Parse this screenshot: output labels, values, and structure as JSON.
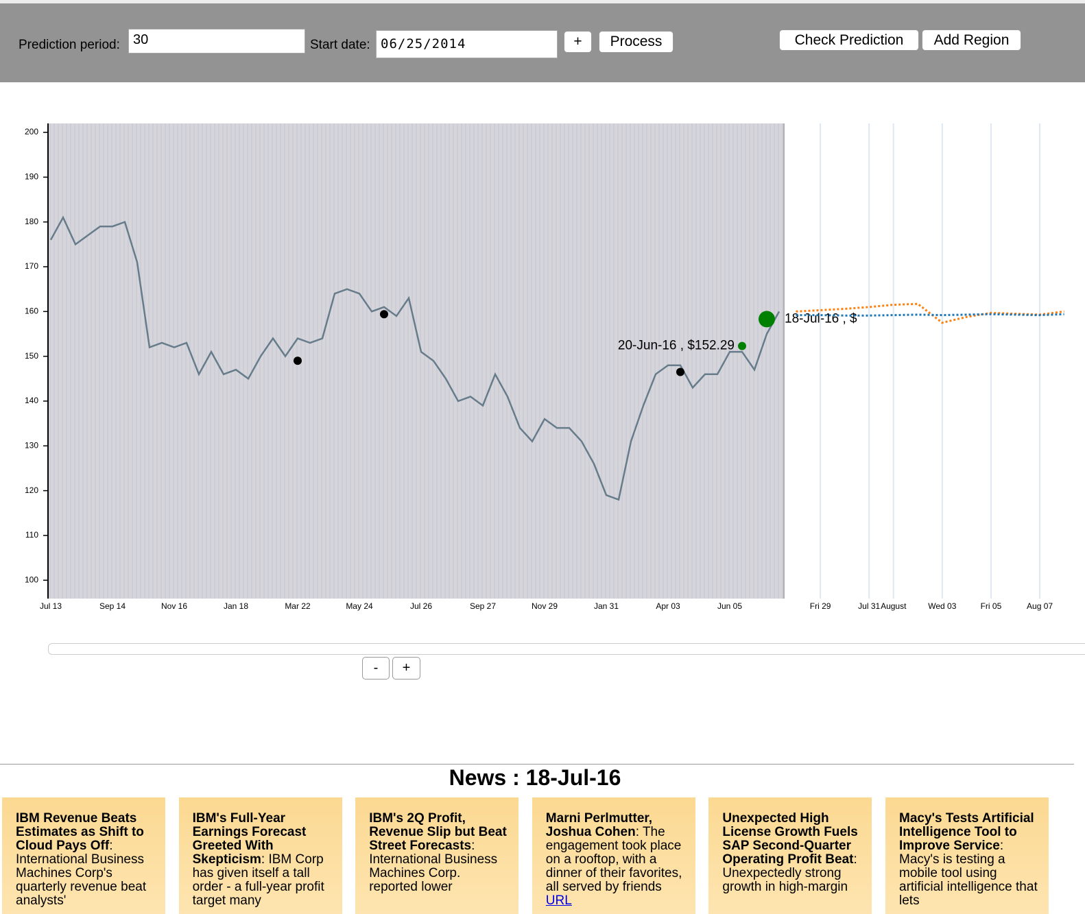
{
  "toolbar": {
    "period_label": "Prediction period:",
    "period_value": "30",
    "start_label": "Start date:",
    "start_value": "06/25/2014",
    "buttons": [
      "+",
      "Process",
      "Check Prediction",
      "Add Region"
    ]
  },
  "chart_data": [
    {
      "type": "line",
      "plot_background": "#d6d6da",
      "categories": [
        "Jul 13",
        null,
        null,
        null,
        null,
        "Sep 14",
        null,
        null,
        null,
        null,
        "Nov 16",
        null,
        null,
        null,
        null,
        "Jan 18",
        null,
        null,
        null,
        null,
        "Mar 22",
        null,
        null,
        null,
        null,
        "May 24",
        null,
        null,
        null,
        null,
        "Jul 26",
        null,
        null,
        null,
        null,
        "Sep 27",
        null,
        null,
        null,
        null,
        "Nov 29",
        null,
        null,
        null,
        null,
        "Jan 31",
        null,
        null,
        null,
        null,
        "Apr 03",
        null,
        null,
        null,
        null,
        "Jun 05",
        null,
        null,
        null,
        null
      ],
      "series": [
        {
          "color": "#667c8a",
          "marker": "none",
          "values": [
            176,
            181,
            175,
            177,
            179,
            179,
            180,
            171,
            152,
            153,
            152,
            153,
            146,
            151,
            146,
            147,
            145,
            150,
            154,
            150,
            154,
            153,
            154,
            164,
            165,
            164,
            160,
            161,
            159,
            163,
            151,
            149,
            145,
            140,
            141,
            139,
            146,
            141,
            134,
            131,
            136,
            134,
            134,
            131,
            126,
            119,
            118,
            131,
            139,
            146,
            148,
            148,
            143,
            146,
            146,
            151,
            151,
            147,
            155,
            160
          ]
        },
        {
          "color": "#000000",
          "marker": "dot",
          "values": [
            null,
            null,
            null,
            null,
            null,
            null,
            null,
            null,
            null,
            null,
            null,
            null,
            null,
            null,
            null,
            null,
            null,
            null,
            null,
            null,
            149,
            null,
            null,
            null,
            null,
            null,
            null,
            159.4,
            null,
            null,
            null,
            null,
            null,
            null,
            null,
            null,
            null,
            null,
            null,
            null,
            null,
            null,
            null,
            null,
            null,
            null,
            null,
            null,
            null,
            null,
            null,
            146.5,
            null,
            null,
            null,
            null,
            null,
            null,
            null,
            null
          ]
        },
        {
          "color": "#008000",
          "marker": "dot",
          "values": [
            null,
            null,
            null,
            null,
            null,
            null,
            null,
            null,
            null,
            null,
            null,
            null,
            null,
            null,
            null,
            null,
            null,
            null,
            null,
            null,
            null,
            null,
            null,
            null,
            null,
            null,
            null,
            null,
            null,
            null,
            null,
            null,
            null,
            null,
            null,
            null,
            null,
            null,
            null,
            null,
            null,
            null,
            null,
            null,
            null,
            null,
            null,
            null,
            null,
            null,
            null,
            null,
            null,
            null,
            null,
            null,
            152.29,
            null,
            null,
            null
          ]
        },
        {
          "color": "#008000",
          "marker": "large-dot",
          "values": [
            null,
            null,
            null,
            null,
            null,
            null,
            null,
            null,
            null,
            null,
            null,
            null,
            null,
            null,
            null,
            null,
            null,
            null,
            null,
            null,
            null,
            null,
            null,
            null,
            null,
            null,
            null,
            null,
            null,
            null,
            null,
            null,
            null,
            null,
            null,
            null,
            null,
            null,
            null,
            null,
            null,
            null,
            null,
            null,
            null,
            null,
            null,
            null,
            null,
            null,
            null,
            null,
            null,
            null,
            null,
            null,
            null,
            null,
            158.3,
            null
          ]
        }
      ],
      "annotations": [
        "20-Jun-16 , $152.29",
        "18-Jul-16 , $"
      ],
      "ylim": [
        95.9,
        202
      ],
      "yticks": [
        100,
        110,
        120,
        130,
        140,
        150,
        160,
        170,
        180,
        190,
        200
      ]
    },
    {
      "type": "line",
      "dashed": true,
      "grid": true,
      "categories": [
        null,
        null,
        "Fri 29",
        null,
        "Jul 31",
        "August",
        null,
        "Wed 03",
        null,
        "Fri 05",
        null,
        "Aug 07",
        null
      ],
      "series": [
        {
          "color": "#ff7f0e",
          "values": [
            null,
            160,
            160.3,
            160.6,
            161,
            161.5,
            161.7,
            157.5,
            158.8,
            159.7,
            159.5,
            159.3,
            160
          ]
        },
        {
          "color": "#1f77b4",
          "values": [
            null,
            159.2,
            159.2,
            159.1,
            159.1,
            159.2,
            159.3,
            159.2,
            159.3,
            159.4,
            159.3,
            159.2,
            159.4
          ]
        }
      ],
      "ylim": [
        95.9,
        202
      ]
    }
  ],
  "zoom_buttons": [
    "-",
    "+"
  ],
  "news": {
    "title": "News : 18-Jul-16",
    "items": [
      {
        "headline": "IBM Revenue Beats Estimates as Shift to Cloud Pays Off",
        "summary": ": International Business Machines Corp's quarterly revenue beat analysts'"
      },
      {
        "headline": "IBM's Full-Year Earnings Forecast Greeted With Skepticism",
        "summary": ": IBM Corp has given itself a tall order - a full-year profit target many"
      },
      {
        "headline": "IBM's 2Q Profit, Revenue Slip but Beat Street Forecasts",
        "summary": ": International Business Machines Corp. reported lower"
      },
      {
        "headline": "Marni Perlmutter, Joshua Cohen",
        "summary": ": The engagement took place on a rooftop, with a dinner of their favorites, all served by friends",
        "link": "URL"
      },
      {
        "headline": "Unexpected High License Growth Fuels SAP Second-Quarter Operating Profit Beat",
        "summary": ": Unexpectedly strong growth in high-margin"
      },
      {
        "headline": "Macy's Tests Artificial Intelligence Tool to Improve Service",
        "summary": ": Macy's is testing a mobile tool using artificial intelligence that lets"
      }
    ]
  }
}
